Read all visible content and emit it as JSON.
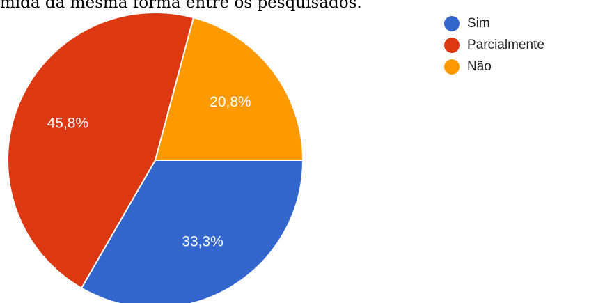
{
  "caption": "mida da mesma forma entre os pesquisados.",
  "colors": {
    "background": "#ffffff",
    "slice_border": "#ffffff",
    "label_text": "#ffffff"
  },
  "chart_data": {
    "type": "pie",
    "start_angle_deg": 90,
    "direction": "clockwise",
    "legend_position": "top-right",
    "slices": [
      {
        "label": "Sim",
        "value": 33.3,
        "display": "33,3%",
        "color": "#3366cc"
      },
      {
        "label": "Parcialmente",
        "value": 45.8,
        "display": "45,8%",
        "color": "#dc3912"
      },
      {
        "label": "Não",
        "value": 20.8,
        "display": "20,8%",
        "color": "#ff9900"
      }
    ]
  }
}
